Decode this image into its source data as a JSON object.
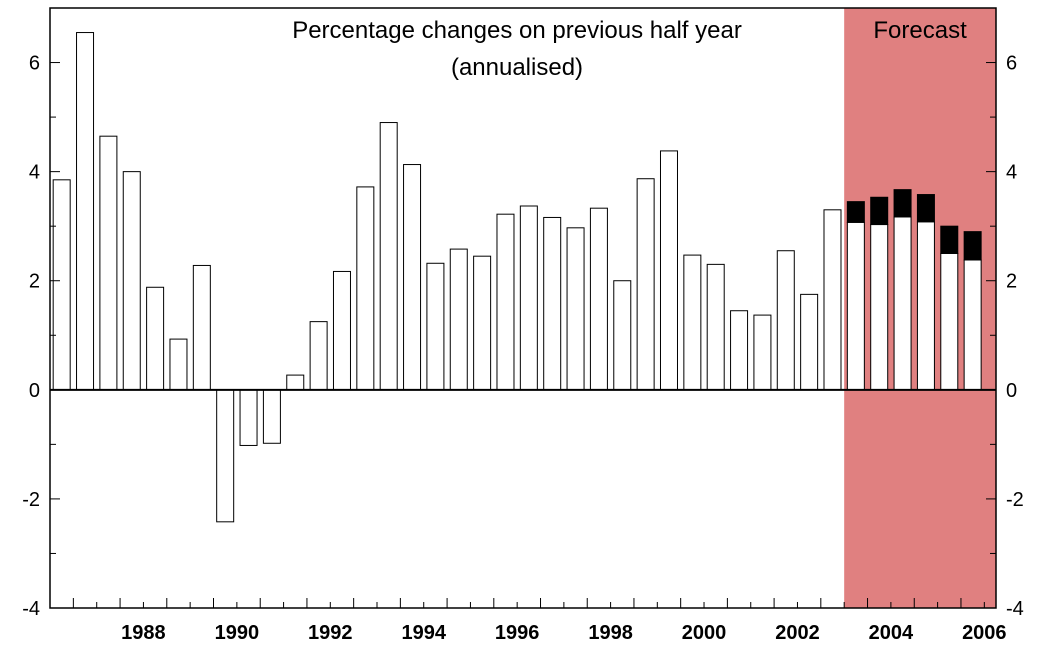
{
  "chart_data": {
    "type": "bar",
    "title_line1": "Percentage changes on previous half year",
    "title_line2": "(annualised)",
    "forecast_label": "Forecast",
    "ylim": [
      -4,
      7
    ],
    "yticks": [
      -4,
      -2,
      0,
      2,
      4,
      6
    ],
    "ytick_labels": [
      "-4",
      "-2",
      "0",
      "2",
      "4",
      "6"
    ],
    "xtick_labels": [
      "1988",
      "1990",
      "1992",
      "1994",
      "1996",
      "1998",
      "2000",
      "2002",
      "2004",
      "2006"
    ],
    "forecast_start": 2003.5,
    "grid": false,
    "colors": {
      "forecast_band": "#e08080",
      "bar_fill": "#ffffff",
      "bar_stroke": "#000000",
      "stacked_top": "#000000"
    },
    "series": [
      {
        "x": [
          1986.75,
          1987.25,
          1987.75,
          1988.25,
          1988.75,
          1989.25,
          1989.75,
          1990.25,
          1990.75,
          1991.25,
          1991.75,
          1992.25,
          1992.75,
          1993.25,
          1993.75,
          1994.25,
          1994.75,
          1995.25,
          1995.75,
          1996.25,
          1996.75,
          1997.25,
          1997.75,
          1998.25,
          1998.75,
          1999.25,
          1999.75,
          2000.25,
          2000.75,
          2001.25,
          2001.75,
          2002.25,
          2002.75,
          2003.25,
          2003.75,
          2004.25,
          2004.75,
          2005.25,
          2005.75,
          2006.25
        ],
        "values": [
          3.85,
          6.55,
          4.65,
          4.0,
          1.88,
          0.93,
          2.28,
          -2.42,
          -1.02,
          -0.98,
          0.27,
          1.25,
          2.17,
          3.72,
          4.9,
          4.13,
          2.32,
          2.58,
          2.45,
          3.22,
          3.37,
          3.16,
          2.97,
          3.33,
          2.0,
          3.87,
          4.38,
          2.47,
          2.3,
          1.45,
          1.37,
          2.55,
          1.75,
          3.3,
          3.07,
          3.03,
          3.17,
          3.08,
          2.5,
          2.38
        ]
      },
      {
        "x": [
          2003.75,
          2004.25,
          2004.75,
          2005.25,
          2005.75,
          2006.25
        ],
        "values": [
          0.38,
          0.5,
          0.5,
          0.5,
          0.5,
          0.52
        ]
      }
    ]
  }
}
